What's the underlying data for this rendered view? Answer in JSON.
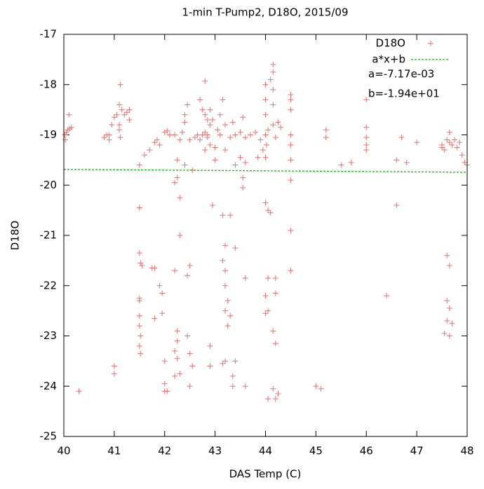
{
  "chart_data": {
    "type": "scatter",
    "title": "1-min T-Pump2, D18O, 2015/09",
    "x_label": "DAS Temp (C)",
    "y_label": "D18O",
    "xlim": [
      40,
      48
    ],
    "ylim": [
      -25,
      -17
    ],
    "xticks": [
      40,
      41,
      42,
      43,
      44,
      45,
      46,
      47,
      48
    ],
    "yticks": [
      -25,
      -24,
      -23,
      -22,
      -21,
      -20,
      -19,
      -18,
      -17
    ],
    "legend": "top-right",
    "annotations": [
      "a=-7.17e-03",
      "b=-1.94e+01"
    ],
    "series": [
      {
        "name": "D18O",
        "color": "#ef6f6f",
        "marker": "plus",
        "x": [
          40.02,
          40.05,
          40.08,
          40.1,
          40.12,
          40.15,
          40.03,
          40.3,
          40.8,
          40.85,
          40.9,
          40.95,
          41.0,
          41.05,
          41.1,
          41.12,
          41.15,
          41.1,
          41.12,
          41.1,
          41.2,
          41.25,
          41.3,
          41.3,
          41.0,
          41.0,
          40.9,
          41.5,
          41.5,
          41.5,
          41.52,
          41.55,
          41.5,
          41.5,
          41.5,
          41.52,
          41.5,
          41.52,
          41.5,
          41.6,
          41.7,
          41.8,
          41.85,
          41.9,
          41.8,
          41.75,
          41.9,
          41.95,
          41.95,
          41.8,
          42.0,
          42.0,
          42.0,
          42.05,
          42.0,
          42.05,
          42.1,
          42.2,
          42.25,
          42.2,
          42.25,
          42.3,
          42.2,
          42.3,
          42.25,
          42.25,
          42.2,
          42.25,
          42.2,
          42.3,
          42.3,
          42.35,
          42.4,
          42.45,
          42.4,
          42.4,
          42.45,
          42.5,
          42.45,
          42.5,
          42.55,
          42.5,
          42.5,
          42.55,
          42.6,
          42.65,
          42.7,
          42.75,
          42.8,
          42.8,
          42.85,
          42.9,
          42.85,
          42.9,
          42.8,
          42.85,
          42.9,
          42.95,
          42.9,
          42.9,
          42.95,
          43.0,
          43.0,
          42.8,
          42.75,
          42.7,
          43.05,
          43.1,
          43.15,
          43.2,
          43.1,
          43.2,
          43.15,
          43.2,
          43.15,
          43.2,
          43.2,
          43.25,
          43.2,
          43.3,
          43.25,
          43.2,
          43.15,
          43.3,
          43.3,
          43.35,
          43.4,
          43.35,
          43.4,
          43.35,
          43.4,
          43.4,
          43.5,
          43.55,
          43.55,
          43.6,
          43.6,
          43.5,
          43.55,
          43.6,
          43.6,
          43.7,
          43.8,
          43.9,
          43.95,
          43.85,
          44.0,
          44.0,
          44.0,
          44.05,
          44.0,
          44.02,
          44.0,
          44.0,
          44.05,
          44.1,
          44.05,
          44.0,
          44.05,
          44.0,
          44.05,
          44.15,
          44.15,
          44.1,
          44.15,
          44.15,
          44.15,
          44.2,
          44.2,
          44.2,
          44.15,
          44.2,
          44.15,
          44.2,
          44.25,
          44.25,
          44.3,
          44.5,
          44.5,
          44.5,
          44.5,
          44.5,
          44.5,
          44.5,
          44.5,
          44.5,
          45.0,
          45.1,
          45.2,
          45.2,
          45.5,
          45.7,
          46.0,
          46.0,
          46.0,
          46.0,
          46.0,
          46.4,
          46.6,
          46.6,
          46.7,
          46.8,
          47.0,
          47.5,
          47.55,
          47.6,
          47.65,
          47.7,
          47.75,
          47.8,
          47.85,
          47.9,
          47.95,
          48.0,
          47.6,
          47.65,
          47.6,
          47.65,
          47.55,
          47.65,
          47.7,
          47.6,
          47.65,
          47.5
        ],
        "values": [
          -19.0,
          -18.95,
          -18.9,
          -18.6,
          -18.88,
          -18.85,
          -19.1,
          -24.1,
          -19.05,
          -19.0,
          -19.0,
          -18.8,
          -18.65,
          -18.6,
          -18.4,
          -18.0,
          -18.5,
          -18.9,
          -19.05,
          -18.8,
          -18.6,
          -18.55,
          -18.7,
          -18.5,
          -23.6,
          -23.75,
          -19.1,
          -19.6,
          -20.45,
          -21.35,
          -21.55,
          -21.6,
          -22.3,
          -22.6,
          -22.8,
          -23.0,
          -23.2,
          -23.35,
          -22.25,
          -19.4,
          -19.3,
          -19.15,
          -19.1,
          -19.2,
          -21.65,
          -21.65,
          -22.0,
          -22.15,
          -22.55,
          -22.65,
          -23.5,
          -23.95,
          -24.1,
          -24.1,
          -18.95,
          -18.92,
          -19.0,
          -19.0,
          -19.5,
          -19.95,
          -19.85,
          -20.25,
          -21.7,
          -21.0,
          -22.9,
          -23.1,
          -23.3,
          -23.45,
          -23.8,
          -23.75,
          -19.1,
          -18.95,
          -18.6,
          -18.4,
          -18.75,
          -19.6,
          -21.8,
          -21.6,
          -23.0,
          -23.35,
          -23.6,
          -24.0,
          -19.1,
          -19.7,
          -19.05,
          -19.0,
          -18.3,
          -18.5,
          -17.93,
          -18.6,
          -18.7,
          -18.8,
          -19.0,
          -19.2,
          -19.3,
          -19.05,
          -18.5,
          -18.7,
          -23.2,
          -23.6,
          -20.4,
          -19.5,
          -19.25,
          -18.95,
          -19.0,
          -19.1,
          -18.9,
          -18.6,
          -18.3,
          -18.8,
          -19.0,
          -19.3,
          -20.6,
          -21.2,
          -21.5,
          -21.7,
          -22.0,
          -22.3,
          -22.5,
          -22.6,
          -22.8,
          -23.5,
          -23.55,
          -20.6,
          -19.05,
          -18.75,
          -19.0,
          -23.8,
          -23.5,
          -24.0,
          -21.25,
          -19.6,
          -19.45,
          -20.05,
          -19.85,
          -19.55,
          -21.85,
          -18.95,
          -18.65,
          -19.05,
          -24.0,
          -19.0,
          -18.95,
          -19.1,
          -19.3,
          -19.45,
          -18.0,
          -18.3,
          -18.6,
          -18.9,
          -19.0,
          -19.2,
          -19.45,
          -20.35,
          -20.5,
          -20.55,
          -21.85,
          -22.2,
          -22.5,
          -22.55,
          -24.25,
          -17.6,
          -17.75,
          -17.9,
          -18.1,
          -18.4,
          -18.8,
          -19.05,
          -21.85,
          -22.15,
          -22.9,
          -23.15,
          -24.05,
          -24.25,
          -24.15,
          -18.75,
          -18.85,
          -18.2,
          -18.3,
          -18.5,
          -19.0,
          -19.2,
          -19.5,
          -19.9,
          -20.9,
          -21.7,
          -24.0,
          -24.05,
          -18.9,
          -19.05,
          -19.6,
          -19.55,
          -18.85,
          -19.05,
          -19.2,
          -19.3,
          -18.3,
          -22.2,
          -20.4,
          -19.5,
          -19.05,
          -19.55,
          -19.15,
          -19.2,
          -19.3,
          -19.1,
          -19.15,
          -19.2,
          -19.1,
          -19.25,
          -19.15,
          -19.4,
          -19.55,
          -19.6,
          -21.4,
          -21.6,
          -22.3,
          -22.45,
          -22.95,
          -23.0,
          -22.75,
          -22.7,
          -18.95,
          -19.25
        ]
      },
      {
        "name": "a*x+b",
        "color": "#00c800",
        "marker": "dashed-line",
        "x": [
          40,
          48
        ],
        "values": [
          -19.687,
          -19.744
        ]
      }
    ]
  }
}
